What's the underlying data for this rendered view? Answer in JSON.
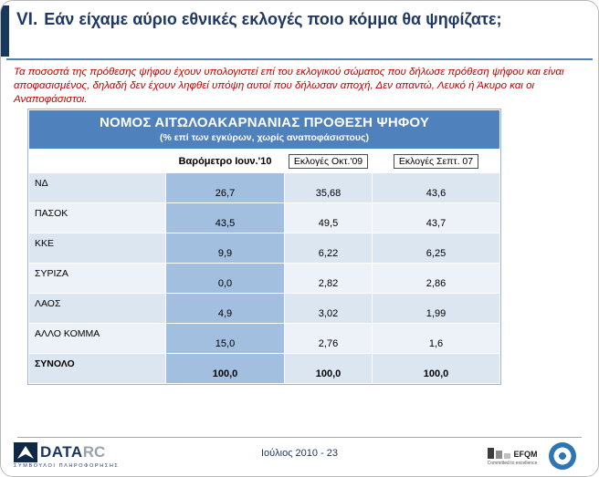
{
  "header": {
    "section_number": "VI.",
    "title": "Εάν είχαμε αύριο εθνικές εκλογές ποιο κόμμα θα ψηφίζατε;"
  },
  "note": {
    "text": "Τα ποσοστά της πρόθεσης ψήφου έχουν υπολογιστεί επί του εκλογικού σώματος που δήλωσε πρόθεση ψήφου και είναι αποφασισμένος, δηλαδή δεν έχουν ληφθεί υπόψη αυτοί που δήλωσαν αποχή, Δεν απαντώ, Λευκό ή Άκυρο και οι Αναποφάσιστοι."
  },
  "chart_data": {
    "type": "table",
    "title": "ΝΟΜΟΣ ΑΙΤΩΛΟΑΚΑΡΝΑΝΙΑΣ ΠΡΟΘΕΣΗ ΨΗΦΟΥ",
    "subtitle": "(% επί των εγκύρων, χωρίς αναποφάσιστους)",
    "columns": [
      "Βαρόμετρο Ιουν.'10",
      "Εκλογές Οκτ.'09",
      "Εκλογές Σεπτ. 07"
    ],
    "rows": [
      {
        "label": "ΝΔ",
        "values": [
          "26,7",
          "35,68",
          "43,6"
        ]
      },
      {
        "label": "ΠΑΣΟΚ",
        "values": [
          "43,5",
          "49,5",
          "43,7"
        ]
      },
      {
        "label": "ΚΚΕ",
        "values": [
          "9,9",
          "6,22",
          "6,25"
        ]
      },
      {
        "label": "ΣΥΡΙΖΑ",
        "values": [
          "0,0",
          "2,82",
          "2,86"
        ]
      },
      {
        "label": "ΛΑΟΣ",
        "values": [
          "4,9",
          "3,02",
          "1,99"
        ]
      },
      {
        "label": "ΑΛΛΟ ΚΟΜΜΑ",
        "values": [
          "15,0",
          "2,76",
          "1,6"
        ]
      },
      {
        "label": "ΣΥΝΟΛΟ",
        "values": [
          "100,0",
          "100,0",
          "100,0"
        ],
        "bold": true
      }
    ]
  },
  "footer": {
    "logo": {
      "text_primary": "DATA",
      "text_secondary": "RC",
      "tagline": "ΣΥΜΒΟΥΛΟΙ ΠΛΗΡΟΦΟΡΗΣΗΣ"
    },
    "page_label": "Ιούλιος 2010 -  23",
    "efqm": {
      "name": "EFQM",
      "tagline": "Committed to excellence"
    }
  },
  "colors": {
    "title_navy": "#1F3864",
    "accent_bar": "#17375E",
    "rule_blue": "#4F81BD",
    "note_red": "#C00000",
    "table_header_bg": "#4F81BD",
    "barometer_column_bg": "#A3BFDF",
    "row_light_blue": "#DCE6F1",
    "badge_blue": "#2E75B6"
  }
}
